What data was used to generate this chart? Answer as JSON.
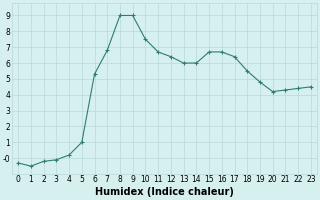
{
  "x": [
    0,
    1,
    2,
    3,
    4,
    5,
    6,
    7,
    8,
    9,
    10,
    11,
    12,
    13,
    14,
    15,
    16,
    17,
    18,
    19,
    20,
    21,
    22,
    23
  ],
  "y": [
    -0.3,
    -0.5,
    -0.2,
    -0.1,
    0.2,
    1.0,
    5.3,
    6.8,
    9.0,
    9.0,
    7.5,
    6.7,
    6.4,
    6.0,
    6.0,
    6.7,
    6.7,
    6.4,
    5.5,
    4.8,
    4.2,
    4.3,
    4.4,
    4.5
  ],
  "xlabel": "Humidex (Indice chaleur)",
  "xlim": [
    -0.5,
    23.5
  ],
  "ylim": [
    -1.0,
    9.8
  ],
  "yticks": [
    0,
    1,
    2,
    3,
    4,
    5,
    6,
    7,
    8,
    9
  ],
  "ytick_labels": [
    "-0",
    "1",
    "2",
    "3",
    "4",
    "5",
    "6",
    "7",
    "8",
    "9"
  ],
  "xticks": [
    0,
    1,
    2,
    3,
    4,
    5,
    6,
    7,
    8,
    9,
    10,
    11,
    12,
    13,
    14,
    15,
    16,
    17,
    18,
    19,
    20,
    21,
    22,
    23
  ],
  "line_color": "#2e7d6e",
  "marker": "+",
  "bg_color": "#d6f0f0",
  "grid_color": "#b8d8d8",
  "label_fontsize": 7,
  "tick_fontsize": 5.5
}
